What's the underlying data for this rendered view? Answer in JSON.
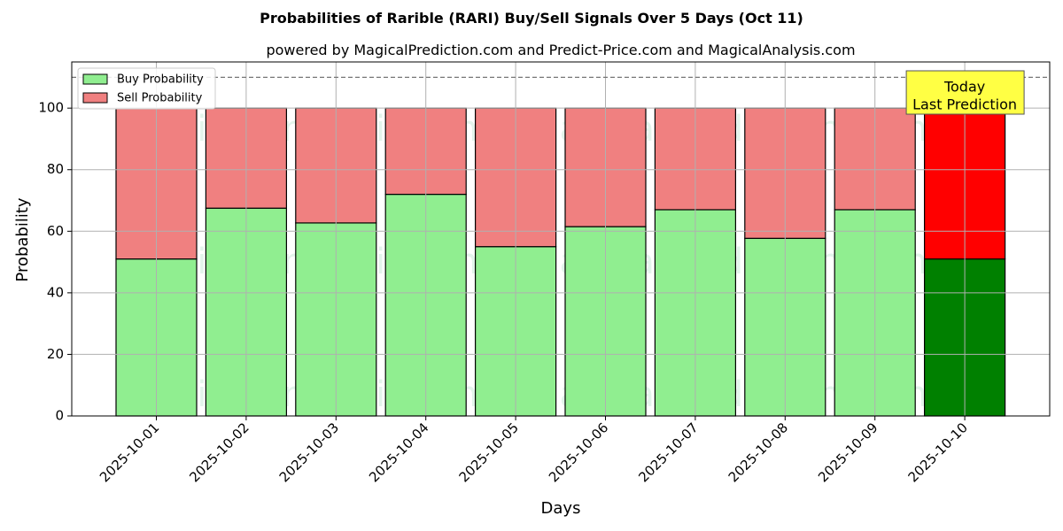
{
  "chart_data": {
    "type": "bar",
    "title": "Probabilities of Rarible (RARI) Buy/Sell Signals Over 5 Days (Oct 11)",
    "subtitle": "powered by MagicalPrediction.com and Predict-Price.com and MagicalAnalysis.com",
    "xlabel": "Days",
    "ylabel": "Probability",
    "ylim": [
      0,
      115
    ],
    "yticks": [
      "0",
      "20",
      "40",
      "60",
      "80",
      "100"
    ],
    "grid": true,
    "stacked": true,
    "legend_position": "top-left",
    "categories": [
      "2025-10-01",
      "2025-10-02",
      "2025-10-03",
      "2025-10-04",
      "2025-10-05",
      "2025-10-06",
      "2025-10-07",
      "2025-10-08",
      "2025-10-09",
      "2025-10-10"
    ],
    "series": [
      {
        "name": "Buy Probability",
        "values": [
          51,
          67.5,
          62.7,
          72,
          55,
          61.5,
          67,
          57.7,
          67,
          51
        ]
      },
      {
        "name": "Sell Probability",
        "values": [
          49,
          32.5,
          37.3,
          28,
          45,
          38.5,
          33,
          42.3,
          33,
          49
        ]
      }
    ],
    "reference_line": 110,
    "highlight_index": 9,
    "annotation": [
      "Today",
      "Last Prediction"
    ],
    "watermarks": [
      "MagicalAnalysis.com",
      "MagicalPrediction.com"
    ],
    "colors": {
      "buy": "#90ee90",
      "sell": "#f08080",
      "buy_highlight": "#008000",
      "sell_highlight": "#ff0000",
      "annotation_bg": "#ffff44",
      "grid": "#b0b0b0"
    }
  }
}
